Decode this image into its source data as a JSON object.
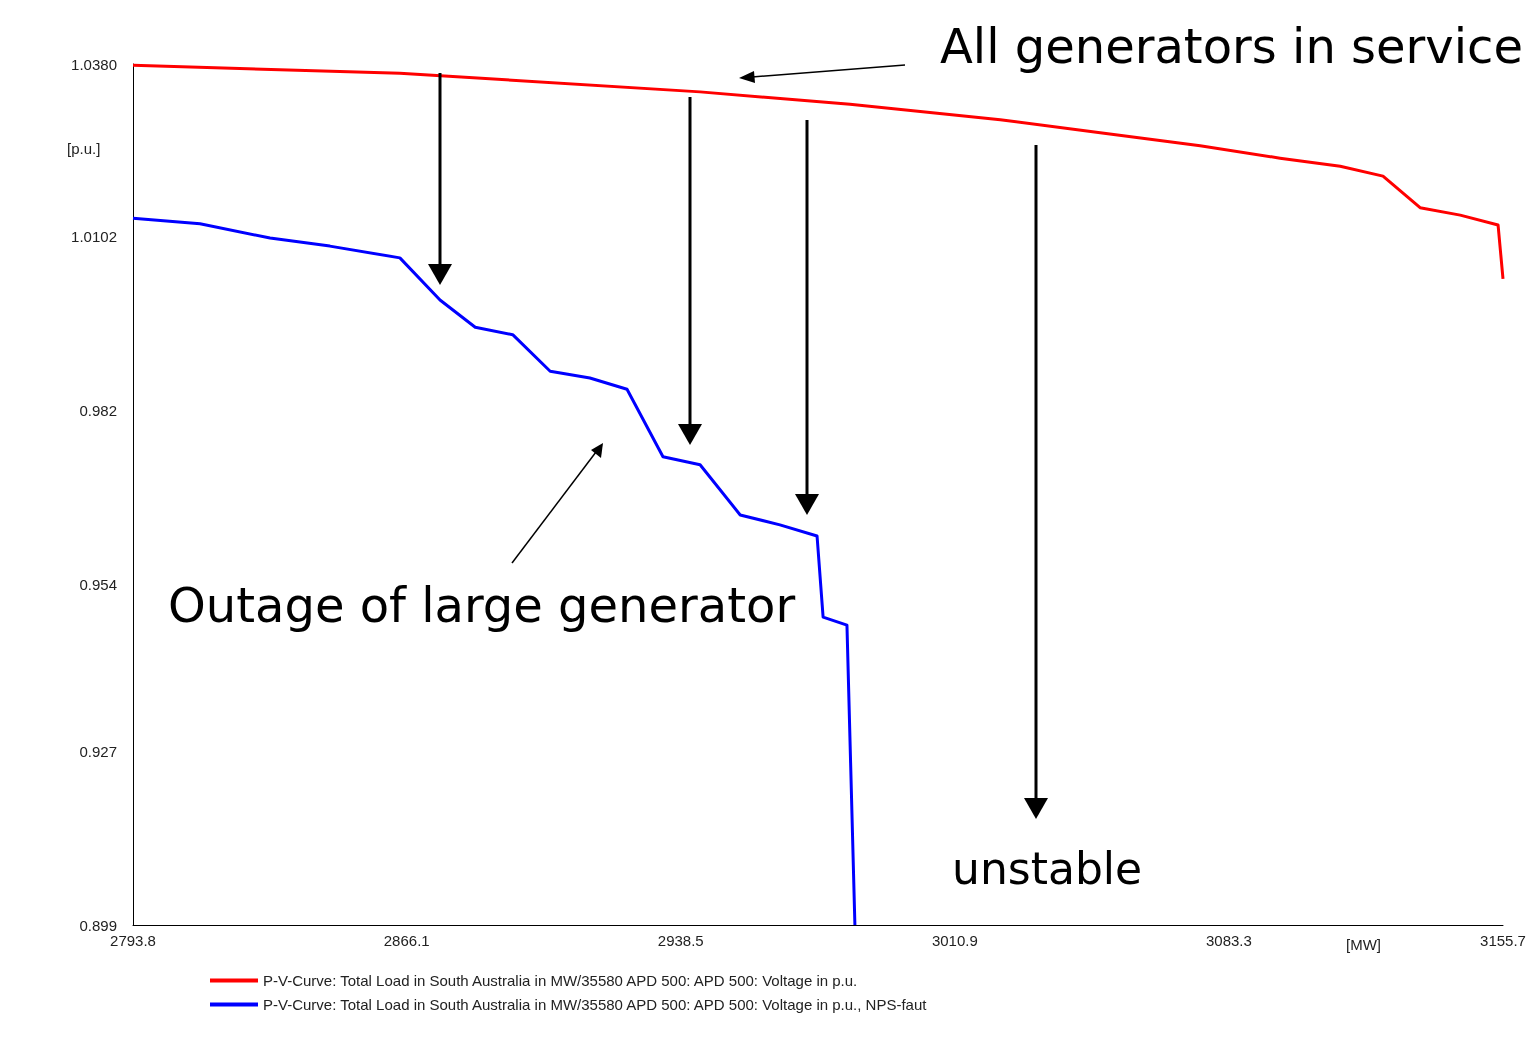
{
  "chart_data": {
    "type": "line",
    "xlabel": "[MW]",
    "ylabel": "[p.u.]",
    "xlim": [
      2793.8,
      3155.7
    ],
    "xticks": [
      2793.8,
      2866.1,
      2938.5,
      3010.9,
      3083.3,
      3155.7
    ],
    "ylim": [
      0.899,
      1.038
    ],
    "yticks": [
      0.899,
      0.927,
      0.954,
      0.982,
      1.0102,
      {
        "value": 1.038,
        "label": "1.0380"
      }
    ],
    "grid": false,
    "legend": "bottom",
    "marker": "none",
    "annotations": [
      "All generators in service",
      "Outage of large generator",
      "unstable"
    ],
    "series": [
      {
        "name": "P-V-Curve: Total Load in South Australia in MW/35580 APD 500: APD 500: Voltage in p.u.",
        "color": "#ff0000",
        "x": [
          2793.8,
          2864.3,
          2943.6,
          2983.2,
          3022.9,
          3049.3,
          3075.7,
          3096.8,
          3112.7,
          3124.0,
          3133.8,
          3144.4,
          3154.4,
          3155.7
        ],
        "values": [
          1.0378,
          1.0365,
          1.0335,
          1.0315,
          1.029,
          1.0269,
          1.0248,
          1.0228,
          1.0215,
          1.0199,
          1.0148,
          1.0136,
          1.012,
          1.0033
        ]
      },
      {
        "name": "P-V-Curve: Total Load in South Australia in MW/35580 APD 500: APD 500: Voltage in p.u., NPS-faut",
        "color": "#0000ff",
        "x": [
          2793.8,
          2811.5,
          2830.0,
          2845.8,
          2864.3,
          2874.9,
          2884.2,
          2894.1,
          2904.0,
          2914.5,
          2924.3,
          2933.8,
          2943.6,
          2954.2,
          2964.7,
          2974.5,
          2976.1,
          2982.4,
          2984.5
        ],
        "values": [
          1.0131,
          1.0122,
          1.0099,
          1.0086,
          1.0067,
          0.9999,
          0.9955,
          0.9943,
          0.9884,
          0.9873,
          0.9855,
          0.9746,
          0.9733,
          0.9652,
          0.9636,
          0.9618,
          0.9487,
          0.9474,
          0.899
        ]
      }
    ]
  }
}
